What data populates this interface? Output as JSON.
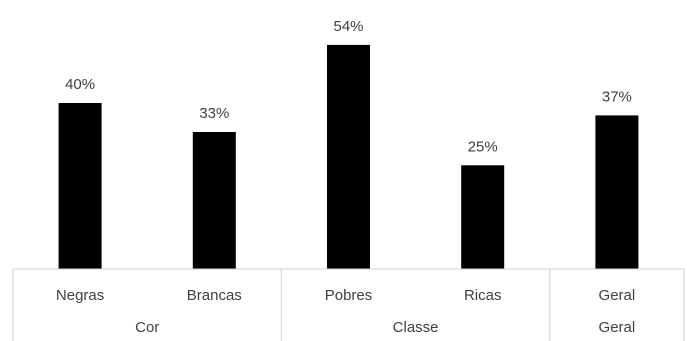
{
  "chart_data": {
    "type": "bar",
    "categories": [
      "Negras",
      "Brancas",
      "Pobres",
      "Ricas",
      "Geral"
    ],
    "values": [
      40,
      33,
      54,
      25,
      37
    ],
    "data_labels": [
      "40%",
      "33%",
      "54%",
      "25%",
      "37%"
    ],
    "groups": [
      {
        "label": "Cor",
        "categories": [
          "Negras",
          "Brancas"
        ]
      },
      {
        "label": "Classe",
        "categories": [
          "Pobres",
          "Ricas"
        ]
      },
      {
        "label": "Geral",
        "categories": [
          "Geral"
        ]
      }
    ],
    "title": "",
    "xlabel": "",
    "ylabel": "",
    "ylim": [
      0,
      60
    ],
    "grid": false,
    "legend": "none",
    "bar_color": "#000000",
    "text_color": "#404040",
    "axis_color": "#d0d0d0"
  }
}
